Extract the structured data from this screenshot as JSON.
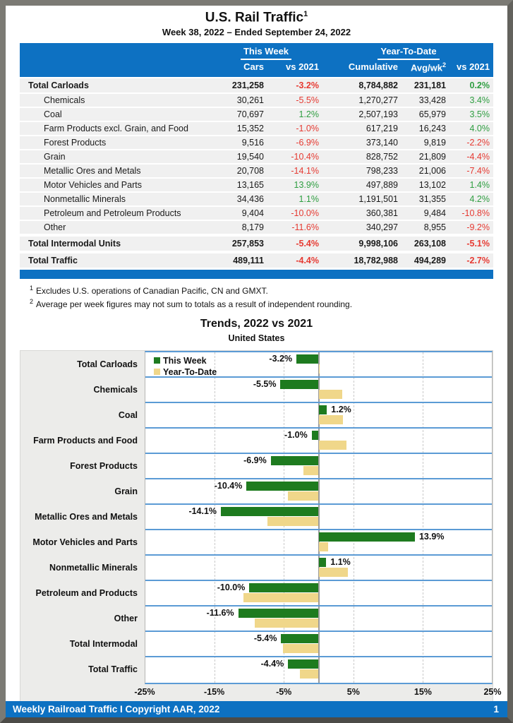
{
  "page": {
    "title": "U.S. Rail Traffic",
    "title_sup": "1",
    "subtitle": "Week 38, 2022 – Ended September 24, 2022",
    "footer_text": "Weekly Railroad Traffic I Copyright AAR, 2022",
    "page_number": "1"
  },
  "colors": {
    "header_blue": "#0d71c2",
    "band_blue": "#5b9bd5",
    "negative_red": "#e63a32",
    "positive_green": "#2f9e41",
    "bar_green": "#1e7b1f",
    "bar_tan": "#f0d78a"
  },
  "table": {
    "group_this_week": "This Week",
    "group_ytd": "Year-To-Date",
    "col_cars": "Cars",
    "col_vs": "vs 2021",
    "col_cumulative": "Cumulative",
    "col_avg": "Avg/wk",
    "col_avg_sup": "2",
    "col_ytd_vs": "vs 2021",
    "rows": [
      {
        "label": "Total Carloads",
        "cars": "231,258",
        "vs": "-3.2%",
        "cumulative": "8,784,882",
        "avg": "231,181",
        "ytd_vs": "0.2%",
        "total": true,
        "gap_before": false
      },
      {
        "label": "Chemicals",
        "cars": "30,261",
        "vs": "-5.5%",
        "cumulative": "1,270,277",
        "avg": "33,428",
        "ytd_vs": "3.4%",
        "total": false,
        "gap_before": false
      },
      {
        "label": "Coal",
        "cars": "70,697",
        "vs": "1.2%",
        "cumulative": "2,507,193",
        "avg": "65,979",
        "ytd_vs": "3.5%",
        "total": false,
        "gap_before": false
      },
      {
        "label": "Farm Products excl. Grain, and Food",
        "cars": "15,352",
        "vs": "-1.0%",
        "cumulative": "617,219",
        "avg": "16,243",
        "ytd_vs": "4.0%",
        "total": false,
        "gap_before": false
      },
      {
        "label": "Forest Products",
        "cars": "9,516",
        "vs": "-6.9%",
        "cumulative": "373,140",
        "avg": "9,819",
        "ytd_vs": "-2.2%",
        "total": false,
        "gap_before": false
      },
      {
        "label": "Grain",
        "cars": "19,540",
        "vs": "-10.4%",
        "cumulative": "828,752",
        "avg": "21,809",
        "ytd_vs": "-4.4%",
        "total": false,
        "gap_before": false
      },
      {
        "label": "Metallic Ores and Metals",
        "cars": "20,708",
        "vs": "-14.1%",
        "cumulative": "798,233",
        "avg": "21,006",
        "ytd_vs": "-7.4%",
        "total": false,
        "gap_before": false
      },
      {
        "label": "Motor Vehicles and Parts",
        "cars": "13,165",
        "vs": "13.9%",
        "cumulative": "497,889",
        "avg": "13,102",
        "ytd_vs": "1.4%",
        "total": false,
        "gap_before": false
      },
      {
        "label": "Nonmetallic Minerals",
        "cars": "34,436",
        "vs": "1.1%",
        "cumulative": "1,191,501",
        "avg": "31,355",
        "ytd_vs": "4.2%",
        "total": false,
        "gap_before": false
      },
      {
        "label": "Petroleum and Petroleum Products",
        "cars": "9,404",
        "vs": "-10.0%",
        "cumulative": "360,381",
        "avg": "9,484",
        "ytd_vs": "-10.8%",
        "total": false,
        "gap_before": false
      },
      {
        "label": "Other",
        "cars": "8,179",
        "vs": "-11.6%",
        "cumulative": "340,297",
        "avg": "8,955",
        "ytd_vs": "-9.2%",
        "total": false,
        "gap_before": false
      },
      {
        "label": "Total Intermodal Units",
        "cars": "257,853",
        "vs": "-5.4%",
        "cumulative": "9,998,106",
        "avg": "263,108",
        "ytd_vs": "-5.1%",
        "total": true,
        "gap_before": true
      },
      {
        "label": "Total Traffic",
        "cars": "489,111",
        "vs": "-4.4%",
        "cumulative": "18,782,988",
        "avg": "494,289",
        "ytd_vs": "-2.7%",
        "total": true,
        "gap_before": true
      }
    ]
  },
  "footnotes": [
    {
      "sup": "1",
      "text": "Excludes U.S. operations of Canadian Pacific, CN and GMXT."
    },
    {
      "sup": "2",
      "text": "Average per week figures may not sum to totals as a result of independent rounding."
    }
  ],
  "chart_data": {
    "type": "bar",
    "orientation": "horizontal",
    "title": "Trends, 2022 vs 2021",
    "subtitle": "United States",
    "categories": [
      "Total Carloads",
      "Chemicals",
      "Coal",
      "Farm Products and Food",
      "Forest Products",
      "Grain",
      "Metallic Ores and Metals",
      "Motor Vehicles and Parts",
      "Nonmetallic Minerals",
      "Petroleum and Products",
      "Other",
      "Total Intermodal",
      "Total Traffic"
    ],
    "series": [
      {
        "name": "This Week",
        "color": "#1e7b1f",
        "values": [
          -3.2,
          -5.5,
          1.2,
          -1.0,
          -6.9,
          -10.4,
          -14.1,
          13.9,
          1.1,
          -10.0,
          -11.6,
          -5.4,
          -4.4
        ]
      },
      {
        "name": "Year-To-Date",
        "color": "#f0d78a",
        "values": [
          0.2,
          3.4,
          3.5,
          4.0,
          -2.2,
          -4.4,
          -7.4,
          1.4,
          4.2,
          -10.8,
          -9.2,
          -5.1,
          -2.7
        ]
      }
    ],
    "bar_labels": [
      "-3.2%",
      "-5.5%",
      "1.2%",
      "-1.0%",
      "-6.9%",
      "-10.4%",
      "-14.1%",
      "13.9%",
      "1.1%",
      "-10.0%",
      "-11.6%",
      "-5.4%",
      "-4.4%"
    ],
    "xlim": [
      -25,
      25
    ],
    "ticks": [
      -25,
      -15,
      -5,
      5,
      15,
      25
    ],
    "tick_labels": [
      "-25%",
      "-15%",
      "-5%",
      "5%",
      "15%",
      "25%"
    ],
    "grid_ticks": [
      -15,
      -5,
      5,
      15
    ],
    "legend_position": "top-left-inside",
    "grid": "dashed-vertical"
  }
}
